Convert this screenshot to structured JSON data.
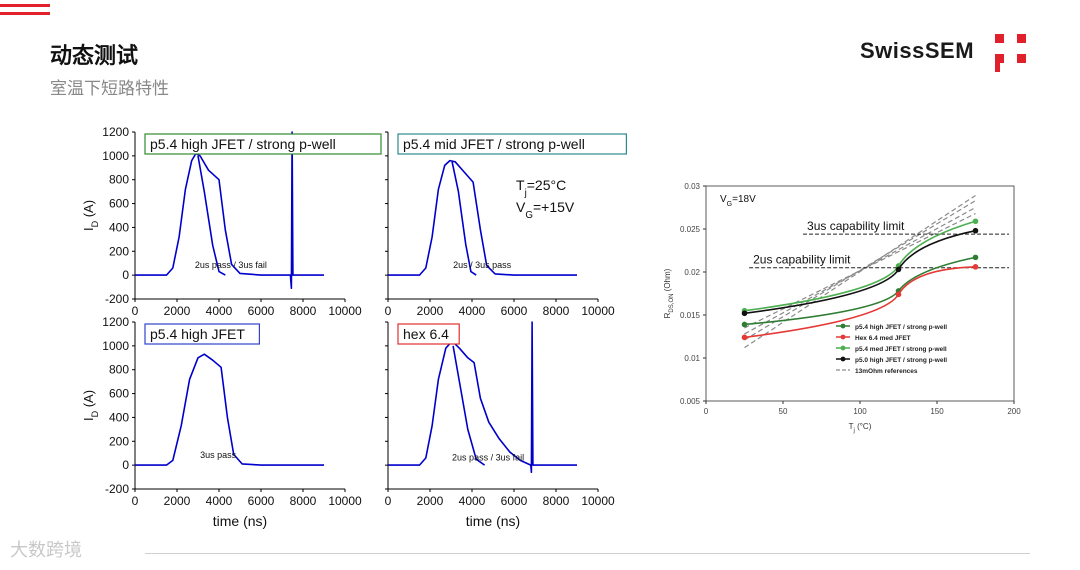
{
  "header": {
    "title": "动态测试",
    "subtitle": "室温下短路特性",
    "logo_text": "SwissSEM",
    "accent": "#e0202a"
  },
  "watermark": "大数跨境",
  "chart_data": [
    {
      "type": "line",
      "id": "sc-top-left",
      "title": "p5.4 high JFET / strong p-well",
      "title_border": "#2e8b2e",
      "xlabel": "",
      "ylabel": "I_D (A)",
      "xlim": [
        0,
        10000
      ],
      "ylim": [
        -200,
        1200
      ],
      "xticks": [
        "0",
        "2000",
        "4000",
        "6000",
        "8000",
        "10000"
      ],
      "yticks": [
        "-200",
        "0",
        "200",
        "400",
        "600",
        "800",
        "1000",
        "1200"
      ],
      "annotation": "2us pass / 3us fail",
      "annotation_xy": [
        2850,
        60
      ],
      "series": [
        {
          "color": "#0000cc",
          "points": [
            [
              0,
              0
            ],
            [
              1500,
              0
            ],
            [
              1800,
              60
            ],
            [
              2100,
              320
            ],
            [
              2400,
              720
            ],
            [
              2700,
              960
            ],
            [
              2900,
              1020
            ],
            [
              3100,
              1000
            ],
            [
              3500,
              880
            ],
            [
              4000,
              800
            ],
            [
              4300,
              380
            ],
            [
              4600,
              90
            ],
            [
              5000,
              15
            ],
            [
              6000,
              0
            ],
            [
              7400,
              0
            ],
            [
              7450,
              -110
            ],
            [
              7480,
              1200
            ],
            [
              7520,
              0
            ],
            [
              9000,
              0
            ]
          ]
        },
        {
          "color": "#0000cc",
          "points": [
            [
              3000,
              1000
            ],
            [
              3300,
              700
            ],
            [
              3700,
              250
            ],
            [
              4000,
              30
            ],
            [
              4300,
              0
            ]
          ]
        }
      ]
    },
    {
      "type": "line",
      "id": "sc-top-right",
      "title": "p5.4 mid JFET / strong p-well",
      "title_border": "#2e8b8b",
      "xlabel": "",
      "ylabel": "",
      "xlim": [
        0,
        10000
      ],
      "ylim": [
        -200,
        1200
      ],
      "xticks": [
        "0",
        "2000",
        "4000",
        "6000",
        "8000",
        "10000"
      ],
      "yticks": [
        "-200",
        "0",
        "200",
        "400",
        "600",
        "800",
        "1000",
        "1200"
      ],
      "annotation": "2us / 3us pass",
      "annotation_xy": [
        3100,
        60
      ],
      "conditions": [
        "Tj=25°C",
        "VG=+15V"
      ],
      "series": [
        {
          "color": "#0000cc",
          "points": [
            [
              0,
              0
            ],
            [
              1500,
              0
            ],
            [
              1800,
              60
            ],
            [
              2100,
              320
            ],
            [
              2400,
              720
            ],
            [
              2700,
              920
            ],
            [
              2950,
              960
            ],
            [
              3200,
              950
            ],
            [
              3600,
              870
            ],
            [
              4050,
              780
            ],
            [
              4400,
              380
            ],
            [
              4700,
              80
            ],
            [
              5100,
              10
            ],
            [
              6000,
              0
            ],
            [
              9000,
              0
            ]
          ]
        },
        {
          "color": "#0000cc",
          "points": [
            [
              3050,
              950
            ],
            [
              3350,
              700
            ],
            [
              3700,
              260
            ],
            [
              3950,
              30
            ],
            [
              4200,
              0
            ]
          ]
        }
      ]
    },
    {
      "type": "line",
      "id": "sc-bottom-left",
      "title": "p5.4 high JFET",
      "title_border": "#3344cc",
      "xlabel": "time (ns)",
      "ylabel": "I_D (A)",
      "xlim": [
        0,
        10000
      ],
      "ylim": [
        -200,
        1200
      ],
      "xticks": [
        "0",
        "2000",
        "4000",
        "6000",
        "8000",
        "10000"
      ],
      "yticks": [
        "-200",
        "0",
        "200",
        "400",
        "600",
        "800",
        "1000",
        "1200"
      ],
      "annotation": "3us pass",
      "annotation_xy": [
        3100,
        60
      ],
      "series": [
        {
          "color": "#0000cc",
          "points": [
            [
              0,
              0
            ],
            [
              1500,
              0
            ],
            [
              1800,
              40
            ],
            [
              2200,
              330
            ],
            [
              2600,
              720
            ],
            [
              3000,
              900
            ],
            [
              3300,
              930
            ],
            [
              3700,
              880
            ],
            [
              4100,
              820
            ],
            [
              4400,
              400
            ],
            [
              4700,
              90
            ],
            [
              5100,
              10
            ],
            [
              6000,
              0
            ],
            [
              9000,
              0
            ]
          ]
        }
      ]
    },
    {
      "type": "line",
      "id": "sc-bottom-right",
      "title": "hex 6.4",
      "title_border": "#e03030",
      "xlabel": "time (ns)",
      "ylabel": "",
      "xlim": [
        0,
        10000
      ],
      "ylim": [
        -200,
        1200
      ],
      "xticks": [
        "0",
        "2000",
        "4000",
        "6000",
        "8000",
        "10000"
      ],
      "yticks": [
        "-200",
        "0",
        "200",
        "400",
        "600",
        "800",
        "1000",
        "1200"
      ],
      "annotation": "2us pass / 3us fail",
      "annotation_xy": [
        3050,
        40
      ],
      "series": [
        {
          "color": "#0000cc",
          "points": [
            [
              0,
              0
            ],
            [
              1500,
              0
            ],
            [
              1800,
              60
            ],
            [
              2100,
              330
            ],
            [
              2400,
              720
            ],
            [
              2750,
              980
            ],
            [
              3050,
              1040
            ],
            [
              3400,
              980
            ],
            [
              3800,
              900
            ],
            [
              4100,
              860
            ],
            [
              4400,
              560
            ],
            [
              4800,
              360
            ],
            [
              5300,
              220
            ],
            [
              5800,
              110
            ],
            [
              6300,
              40
            ],
            [
              6800,
              0
            ],
            [
              6830,
              -60
            ],
            [
              6860,
              1200
            ],
            [
              6900,
              0
            ],
            [
              9000,
              0
            ]
          ]
        },
        {
          "color": "#0000cc",
          "points": [
            [
              3100,
              1000
            ],
            [
              3400,
              700
            ],
            [
              3800,
              300
            ],
            [
              4200,
              50
            ],
            [
              4600,
              0
            ]
          ]
        }
      ]
    },
    {
      "type": "line",
      "id": "rdson",
      "title": "",
      "xlabel": "Tj (°C)",
      "ylabel": "RDS,ON (Ohm)",
      "xlim": [
        0,
        200
      ],
      "ylim": [
        0.005,
        0.03
      ],
      "xticks": [
        "0",
        "50",
        "100",
        "150",
        "200"
      ],
      "yticks": [
        "0.005",
        "0.01",
        "0.015",
        "0.02",
        "0.025",
        "0.03"
      ],
      "vg_label": "VG=18V",
      "limits": [
        {
          "label": "3us capability limit",
          "y": 0.0244,
          "x_from": 63
        },
        {
          "label": "2us capability limit",
          "y": 0.0205,
          "x_from": 28
        }
      ],
      "series": [
        {
          "name": "p5.4 high JFET / strong p-well",
          "color": "#2e7d32",
          "values": [
            [
              25,
              0.0139
            ],
            [
              125,
              0.0178
            ],
            [
              175,
              0.0217
            ]
          ]
        },
        {
          "name": "Hex 6.4 med JFET",
          "color": "#e53935",
          "values": [
            [
              25,
              0.0124
            ],
            [
              125,
              0.0174
            ],
            [
              175,
              0.0206
            ]
          ]
        },
        {
          "name": "p5.4 med JFET / strong p-well",
          "color": "#4caf50",
          "values": [
            [
              25,
              0.0155
            ],
            [
              125,
              0.0207
            ],
            [
              175,
              0.0259
            ]
          ]
        },
        {
          "name": "p5.0 high JFET / strong p-well",
          "color": "#111111",
          "values": [
            [
              25,
              0.0152
            ],
            [
              125,
              0.0203
            ],
            [
              175,
              0.0248
            ]
          ]
        }
      ],
      "references": {
        "name": "13mOhm references",
        "color": "#8a8a8a",
        "lines": [
          [
            [
              25,
              0.0112
            ],
            [
              175,
              0.0289
            ]
          ],
          [
            [
              25,
              0.0121
            ],
            [
              175,
              0.0283
            ]
          ],
          [
            [
              25,
              0.0128
            ],
            [
              175,
              0.0275
            ]
          ],
          [
            [
              25,
              0.0135
            ],
            [
              175,
              0.0268
            ]
          ]
        ]
      }
    }
  ]
}
